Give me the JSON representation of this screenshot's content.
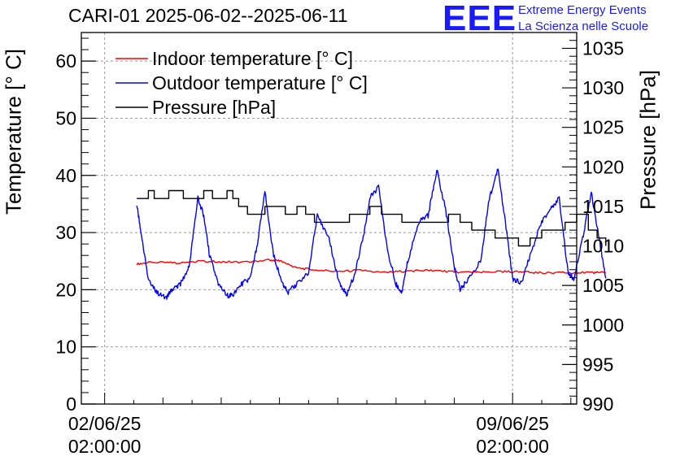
{
  "header": {
    "title": "CARI-01 2025-06-02--2025-06-11",
    "logo_text": "EEE",
    "logo_line1": "Extreme Energy Events",
    "logo_line2": "La Scienza nelle Scuole"
  },
  "colors": {
    "indoor": "#ff0000",
    "outdoor": "#0000ff",
    "pressure": "#000000",
    "logo": "#1a1aff"
  },
  "chart_data": {
    "type": "line",
    "title": "CARI-01 2025-06-02--2025-06-11",
    "ylabel": "Temperature [° C]",
    "y2label": "Pressure [hPa]",
    "ylim": [
      0,
      65
    ],
    "y2lim": [
      990,
      1037
    ],
    "yticks": [
      "0",
      "10",
      "20",
      "30",
      "40",
      "50",
      "60"
    ],
    "y2ticks": [
      "990",
      "995",
      "1000",
      "1005",
      "1010",
      "1015",
      "1020",
      "1025",
      "1030",
      "1035"
    ],
    "xlim_days": [
      -0.4,
      8.1
    ],
    "xticks": [
      {
        "day": 0,
        "line1": "02/06/25",
        "line2": "02:00:00"
      },
      {
        "day": 7,
        "line1": "09/06/25",
        "line2": "02:00:00"
      }
    ],
    "legend": [
      {
        "name": "Indoor temperature [° C]",
        "color": "#ff0000"
      },
      {
        "name": "Outdoor temperature [° C]",
        "color": "#0000ff"
      },
      {
        "name": "Pressure [hPa]",
        "color": "#000000"
      }
    ],
    "legend_position": "top-left",
    "grid": true,
    "series": [
      {
        "name": "Indoor temperature [° C]",
        "axis": "left",
        "x": [
          0.55,
          0.8,
          1.2,
          1.6,
          2.0,
          2.4,
          2.8,
          3.0,
          3.3,
          3.6,
          4.0,
          4.4,
          4.8,
          5.2,
          5.6,
          6.0,
          6.4,
          6.8,
          7.2,
          7.6,
          8.0,
          8.4,
          8.6
        ],
        "y": [
          24.5,
          24.8,
          24.7,
          25.0,
          24.9,
          24.8,
          25.2,
          25.1,
          23.8,
          23.5,
          23.2,
          23.4,
          23.0,
          23.3,
          23.4,
          23.1,
          23.0,
          23.2,
          23.1,
          22.9,
          23.0,
          23.0,
          23.0
        ]
      },
      {
        "name": "Outdoor temperature [° C]",
        "axis": "left",
        "x": [
          0.55,
          0.62,
          0.75,
          0.9,
          1.05,
          1.15,
          1.3,
          1.45,
          1.6,
          1.7,
          1.8,
          1.95,
          2.1,
          2.2,
          2.35,
          2.5,
          2.62,
          2.75,
          2.9,
          3.05,
          3.15,
          3.3,
          3.5,
          3.65,
          3.85,
          4.0,
          4.15,
          4.3,
          4.45,
          4.55,
          4.7,
          4.85,
          5.0,
          5.1,
          5.2,
          5.4,
          5.55,
          5.7,
          5.85,
          6.0,
          6.1,
          6.25,
          6.45,
          6.6,
          6.75,
          6.9,
          7.0,
          7.15,
          7.3,
          7.5,
          7.65,
          7.8,
          7.95,
          8.05,
          8.2,
          8.35,
          8.5,
          8.6
        ],
        "y": [
          35,
          30,
          22,
          19.5,
          18.5,
          20,
          21,
          24,
          36,
          33,
          26,
          21,
          19,
          19,
          21,
          22,
          28,
          37,
          26,
          21,
          19.5,
          21,
          23,
          33,
          29,
          22,
          19,
          23,
          30,
          36,
          38,
          27,
          21,
          19.5,
          25,
          32,
          33,
          41,
          34,
          24,
          20,
          22,
          25,
          36,
          41,
          30,
          22,
          21,
          26,
          32,
          34,
          36,
          23,
          22,
          29,
          37,
          28,
          22
        ]
      },
      {
        "name": "Pressure [hPa]",
        "axis": "right",
        "x": [
          0.55,
          0.65,
          0.75,
          0.85,
          1.0,
          1.1,
          1.2,
          1.35,
          1.5,
          1.7,
          1.85,
          2.0,
          2.1,
          2.2,
          2.3,
          2.45,
          2.6,
          2.75,
          2.9,
          3.1,
          3.3,
          3.45,
          3.6,
          3.8,
          4.0,
          4.2,
          4.4,
          4.55,
          4.75,
          4.95,
          5.1,
          5.3,
          5.5,
          5.7,
          5.9,
          6.1,
          6.3,
          6.5,
          6.7,
          6.9,
          7.1,
          7.3,
          7.5,
          7.7,
          7.9,
          8.1,
          8.3,
          8.45,
          8.6
        ],
        "y": [
          1016,
          1016,
          1017,
          1016,
          1016,
          1017,
          1017,
          1016,
          1016,
          1017,
          1016,
          1016,
          1017,
          1016,
          1015,
          1014,
          1014,
          1015,
          1015,
          1014,
          1015,
          1014,
          1013,
          1013,
          1013,
          1014,
          1014,
          1015,
          1014,
          1014,
          1013,
          1013,
          1013,
          1013,
          1014,
          1013,
          1012,
          1012,
          1011,
          1011,
          1010,
          1011,
          1012,
          1012,
          1013,
          1014,
          1012,
          1011,
          1010
        ]
      }
    ]
  }
}
